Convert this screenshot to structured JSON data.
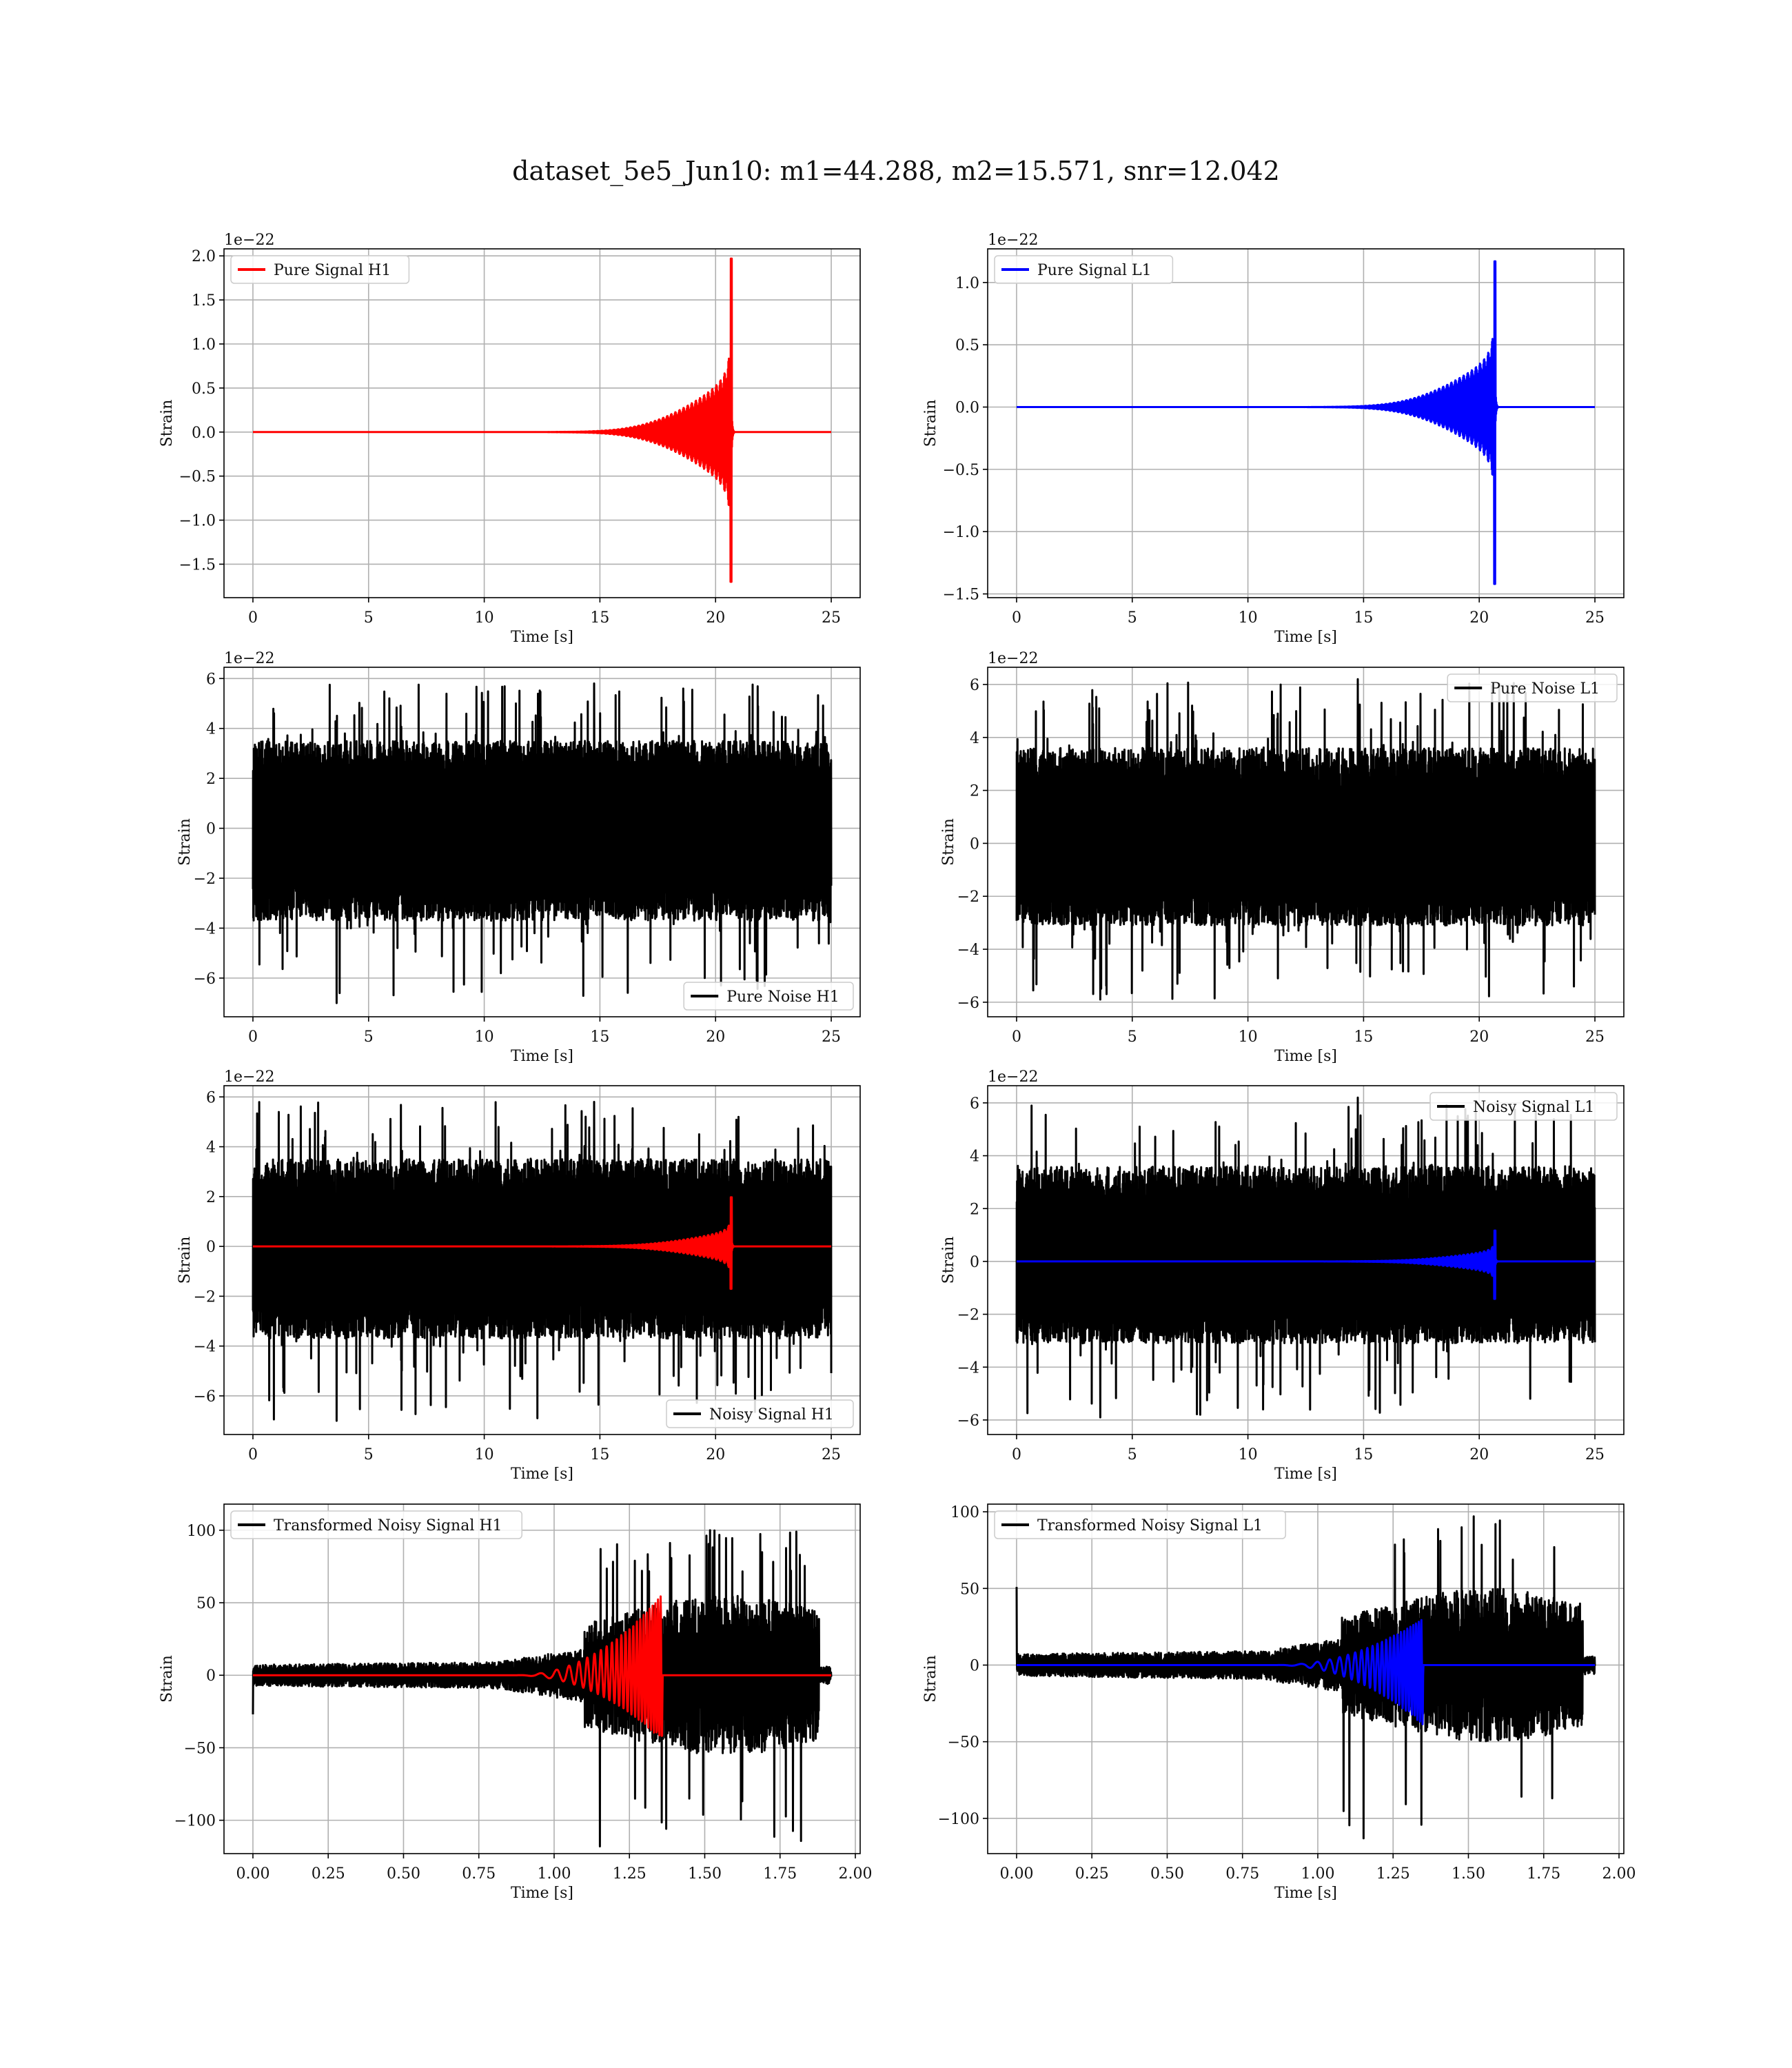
{
  "figure": {
    "title": "dataset_5e5_Jun10: m1=44.288, m2=15.571, snr=12.042"
  },
  "chart_data": [
    {
      "id": "p1",
      "type": "line",
      "xlabel": "Time [s]",
      "ylabel": "Strain",
      "offset_text": "1e−22",
      "xlim": [
        -1.25,
        26.25
      ],
      "ylim": [
        -1.88,
        2.08
      ],
      "xticks": [
        0,
        5,
        10,
        15,
        20,
        25
      ],
      "yticks": [
        -1.5,
        -1.0,
        -0.5,
        0.0,
        0.5,
        1.0,
        1.5,
        2.0
      ],
      "ytick_labels": [
        "−1.5",
        "−1.0",
        "−0.5",
        "0.0",
        "0.5",
        "1.0",
        "1.5",
        "2.0"
      ],
      "grid": true,
      "legend_loc": "upper-left",
      "series": [
        {
          "name": "Pure Signal H1",
          "color": "#ff0000",
          "kind": "chirp",
          "x_range": [
            0,
            25
          ],
          "t_merge": 20.7,
          "peak_max": 1.97,
          "peak_min": -1.7,
          "env_start": 0.55
        }
      ]
    },
    {
      "id": "p2",
      "type": "line",
      "xlabel": "Time [s]",
      "ylabel": "Strain",
      "offset_text": "1e−22",
      "xlim": [
        -1.25,
        26.25
      ],
      "ylim": [
        -1.53,
        1.27
      ],
      "xticks": [
        0,
        5,
        10,
        15,
        20,
        25
      ],
      "yticks": [
        -1.5,
        -1.0,
        -0.5,
        0.0,
        0.5,
        1.0
      ],
      "ytick_labels": [
        "−1.5",
        "−1.0",
        "−0.5",
        "0.0",
        "0.5",
        "1.0"
      ],
      "grid": true,
      "legend_loc": "upper-left",
      "series": [
        {
          "name": "Pure Signal L1",
          "color": "#0000ff",
          "kind": "chirp",
          "x_range": [
            0,
            25
          ],
          "t_merge": 20.7,
          "peak_max": 1.17,
          "peak_min": -1.42,
          "env_start": 0.36
        }
      ]
    },
    {
      "id": "p3",
      "type": "line",
      "xlabel": "Time [s]",
      "ylabel": "Strain",
      "offset_text": "1e−22",
      "xlim": [
        -1.25,
        26.25
      ],
      "ylim": [
        -7.55,
        6.45
      ],
      "xticks": [
        0,
        5,
        10,
        15,
        20,
        25
      ],
      "yticks": [
        -6,
        -4,
        -2,
        0,
        2,
        4,
        6
      ],
      "ytick_labels": [
        "−6",
        "−4",
        "−2",
        "0",
        "2",
        "4",
        "6"
      ],
      "grid": true,
      "legend_loc": "lower-right",
      "series": [
        {
          "name": "Pure Noise H1",
          "color": "#000000",
          "kind": "noise",
          "x_range": [
            0,
            25
          ],
          "band_max": 3.5,
          "band_min": -3.7,
          "spike_max": 5.8,
          "spike_min": -7.0
        }
      ]
    },
    {
      "id": "p4",
      "type": "line",
      "xlabel": "Time [s]",
      "ylabel": "Strain",
      "offset_text": "1e−22",
      "xlim": [
        -1.25,
        26.25
      ],
      "ylim": [
        -6.55,
        6.65
      ],
      "xticks": [
        0,
        5,
        10,
        15,
        20,
        25
      ],
      "yticks": [
        -6,
        -4,
        -2,
        0,
        2,
        4,
        6
      ],
      "ytick_labels": [
        "−6",
        "−4",
        "−2",
        "0",
        "2",
        "4",
        "6"
      ],
      "grid": true,
      "legend_loc": "upper-right",
      "series": [
        {
          "name": "Pure Noise L1",
          "color": "#000000",
          "kind": "noise",
          "x_range": [
            0,
            25
          ],
          "band_max": 3.6,
          "band_min": -3.1,
          "spike_max": 6.2,
          "spike_min": -5.9
        }
      ]
    },
    {
      "id": "p5",
      "type": "line",
      "xlabel": "Time [s]",
      "ylabel": "Strain",
      "offset_text": "1e−22",
      "xlim": [
        -1.25,
        26.25
      ],
      "ylim": [
        -7.55,
        6.45
      ],
      "xticks": [
        0,
        5,
        10,
        15,
        20,
        25
      ],
      "yticks": [
        -6,
        -4,
        -2,
        0,
        2,
        4,
        6
      ],
      "ytick_labels": [
        "−6",
        "−4",
        "−2",
        "0",
        "2",
        "4",
        "6"
      ],
      "grid": true,
      "legend_loc": "lower-right",
      "series": [
        {
          "name": "Noisy Signal H1",
          "color": "#000000",
          "kind": "noise",
          "x_range": [
            0,
            25
          ],
          "band_max": 3.5,
          "band_min": -3.7,
          "spike_max": 5.8,
          "spike_min": -7.0
        },
        {
          "name": "",
          "color": "#ff0000",
          "kind": "chirp",
          "x_range": [
            0,
            25
          ],
          "t_merge": 20.7,
          "peak_max": 1.97,
          "peak_min": -1.7,
          "env_start": 0.55
        }
      ]
    },
    {
      "id": "p6",
      "type": "line",
      "xlabel": "Time [s]",
      "ylabel": "Strain",
      "offset_text": "1e−22",
      "xlim": [
        -1.25,
        26.25
      ],
      "ylim": [
        -6.55,
        6.65
      ],
      "xticks": [
        0,
        5,
        10,
        15,
        20,
        25
      ],
      "yticks": [
        -6,
        -4,
        -2,
        0,
        2,
        4,
        6
      ],
      "ytick_labels": [
        "−6",
        "−4",
        "−2",
        "0",
        "2",
        "4",
        "6"
      ],
      "grid": true,
      "legend_loc": "upper-right",
      "series": [
        {
          "name": "Noisy Signal L1",
          "color": "#000000",
          "kind": "noise",
          "x_range": [
            0,
            25
          ],
          "band_max": 3.6,
          "band_min": -3.1,
          "spike_max": 6.2,
          "spike_min": -5.9
        },
        {
          "name": "",
          "color": "#0000ff",
          "kind": "chirp",
          "x_range": [
            0,
            25
          ],
          "t_merge": 20.7,
          "peak_max": 1.17,
          "peak_min": -1.42,
          "env_start": 0.36
        }
      ]
    },
    {
      "id": "p7",
      "type": "line",
      "xlabel": "Time [s]",
      "ylabel": "Strain",
      "offset_text": "",
      "xlim": [
        -0.096,
        2.016
      ],
      "ylim": [
        -123,
        118
      ],
      "xticks": [
        0.0,
        0.25,
        0.5,
        0.75,
        1.0,
        1.25,
        1.5,
        1.75,
        2.0
      ],
      "xtick_labels": [
        "0.00",
        "0.25",
        "0.50",
        "0.75",
        "1.00",
        "1.25",
        "1.50",
        "1.75",
        "2.00"
      ],
      "yticks": [
        -100,
        -50,
        0,
        50,
        100
      ],
      "ytick_labels": [
        "−100",
        "−50",
        "0",
        "50",
        "100"
      ],
      "grid": true,
      "legend_loc": "upper-left",
      "series": [
        {
          "name": "Transformed Noisy Signal H1",
          "color": "#000000",
          "kind": "tnoise",
          "x_range": [
            0,
            1.92
          ],
          "jump_t": 1.1,
          "pre_amp": 8,
          "post_amp": 55,
          "spike_max": 100,
          "spike_min": -118,
          "start_val": -27
        },
        {
          "name": "",
          "color": "#ff0000",
          "kind": "tchirp",
          "x_range": [
            0,
            1.92
          ],
          "t_merge": 1.36,
          "peak_max": 56,
          "peak_min": -45
        }
      ]
    },
    {
      "id": "p8",
      "type": "line",
      "xlabel": "Time [s]",
      "ylabel": "Strain",
      "offset_text": "",
      "xlim": [
        -0.096,
        2.016
      ],
      "ylim": [
        -123,
        105
      ],
      "xticks": [
        0.0,
        0.25,
        0.5,
        0.75,
        1.0,
        1.25,
        1.5,
        1.75,
        2.0
      ],
      "xtick_labels": [
        "0.00",
        "0.25",
        "0.50",
        "0.75",
        "1.00",
        "1.25",
        "1.50",
        "1.75",
        "2.00"
      ],
      "yticks": [
        -100,
        -50,
        0,
        50,
        100
      ],
      "ytick_labels": [
        "−100",
        "−50",
        "0",
        "50",
        "100"
      ],
      "grid": true,
      "legend_loc": "upper-left",
      "series": [
        {
          "name": "Transformed Noisy Signal L1",
          "color": "#000000",
          "kind": "tnoise",
          "x_range": [
            0,
            1.92
          ],
          "jump_t": 1.08,
          "pre_amp": 8,
          "post_amp": 50,
          "spike_max": 97,
          "spike_min": -113,
          "start_val": 51
        },
        {
          "name": "",
          "color": "#0000ff",
          "kind": "tchirp",
          "x_range": [
            0,
            1.92
          ],
          "t_merge": 1.35,
          "peak_max": 31,
          "peak_min": -39
        }
      ]
    }
  ]
}
